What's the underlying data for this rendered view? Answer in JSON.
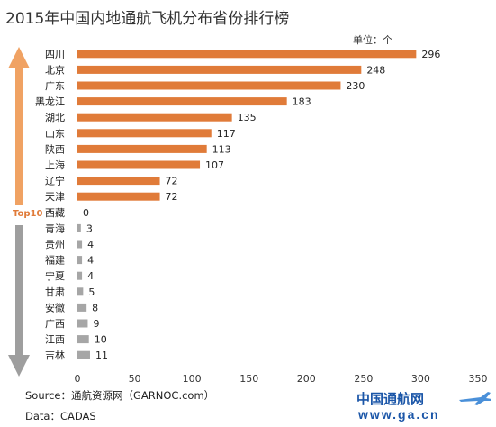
{
  "title": "2015年中国内地通航飞机分布省份排行榜",
  "unit": "单位：个",
  "top_label": "Top10",
  "source": "Source：通航资源网（GARNOC.com）",
  "data_source": "Data：CADAS",
  "logo": {
    "name": "中国通航网",
    "url": "www.ga.cn"
  },
  "colors": {
    "orange": "#E07B39",
    "gray": "#A6A6A6",
    "top_arrow": "#F0A263",
    "bottom_arrow": "#9E9E9E"
  },
  "chart_data": {
    "type": "bar",
    "orientation": "horizontal",
    "categories": [
      "四川",
      "北京",
      "广东",
      "黑龙江",
      "湖北",
      "山东",
      "陕西",
      "上海",
      "辽宁",
      "天津",
      "西藏",
      "青海",
      "贵州",
      "福建",
      "宁夏",
      "甘肃",
      "安徽",
      "广西",
      "江西",
      "吉林"
    ],
    "values": [
      296,
      248,
      230,
      183,
      135,
      117,
      113,
      107,
      72,
      72,
      0,
      3,
      4,
      4,
      4,
      5,
      8,
      9,
      10,
      11
    ],
    "xlim": [
      0,
      350
    ],
    "xticks": [
      0,
      50,
      100,
      150,
      200,
      250,
      300,
      350
    ],
    "grid": false,
    "top_n": 10
  }
}
